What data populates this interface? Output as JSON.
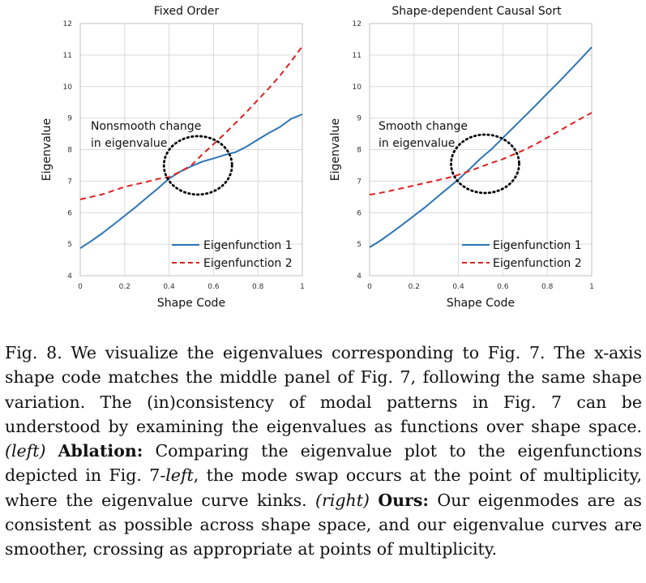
{
  "chart_data": [
    {
      "type": "line",
      "title": "Fixed Order",
      "xlabel": "Shape Code",
      "ylabel": "Eigenvalue",
      "xlim": [
        0,
        1
      ],
      "ylim": [
        4,
        12
      ],
      "x_ticks": [
        "0",
        "0.2",
        "0.4",
        "0.6",
        "0.8",
        "1"
      ],
      "y_ticks": [
        "4",
        "5",
        "6",
        "7",
        "8",
        "9",
        "10",
        "11",
        "12"
      ],
      "legend_position": "bottom-right",
      "annotation": {
        "lines": [
          "Nonsmooth change",
          "in eigenvalue"
        ],
        "circle_center": [
          0.53,
          7.5
        ]
      },
      "series": [
        {
          "name": "Eigenfunction 1",
          "style": "solid",
          "color": "#2e75b6",
          "x": [
            0,
            0.05,
            0.1,
            0.15,
            0.2,
            0.25,
            0.3,
            0.35,
            0.4,
            0.45,
            0.5,
            0.55,
            0.6,
            0.65,
            0.7,
            0.75,
            0.8,
            0.85,
            0.9,
            0.95,
            1.0
          ],
          "y": [
            4.87,
            5.1,
            5.35,
            5.62,
            5.9,
            6.18,
            6.48,
            6.77,
            7.08,
            7.3,
            7.47,
            7.62,
            7.72,
            7.83,
            7.92,
            8.1,
            8.32,
            8.53,
            8.72,
            8.98,
            9.12
          ]
        },
        {
          "name": "Eigenfunction 2",
          "style": "dashed",
          "color": "#e02020",
          "x": [
            0,
            0.05,
            0.1,
            0.15,
            0.2,
            0.25,
            0.3,
            0.35,
            0.4,
            0.45,
            0.5,
            0.55,
            0.6,
            0.65,
            0.7,
            0.75,
            0.8,
            0.85,
            0.9,
            0.95,
            1.0
          ],
          "y": [
            6.42,
            6.5,
            6.58,
            6.7,
            6.82,
            6.9,
            6.98,
            7.07,
            7.13,
            7.3,
            7.5,
            7.85,
            8.17,
            8.5,
            8.85,
            9.2,
            9.58,
            9.95,
            10.35,
            10.8,
            11.28
          ]
        }
      ]
    },
    {
      "type": "line",
      "title": "Shape-dependent Causal Sort",
      "xlabel": "Shape Code",
      "ylabel": "Eigenvalue",
      "xlim": [
        0,
        1
      ],
      "ylim": [
        4,
        12
      ],
      "x_ticks": [
        "0",
        "0.2",
        "0.4",
        "0.6",
        "0.8",
        "1"
      ],
      "y_ticks": [
        "4",
        "5",
        "6",
        "7",
        "8",
        "9",
        "10",
        "11",
        "12"
      ],
      "legend_position": "bottom-right",
      "annotation": {
        "lines": [
          "Smooth change",
          "in eigenvalue"
        ],
        "circle_center": [
          0.52,
          7.55
        ]
      },
      "series": [
        {
          "name": "Eigenfunction 1",
          "style": "solid",
          "color": "#2e75b6",
          "x": [
            0,
            0.05,
            0.1,
            0.15,
            0.2,
            0.25,
            0.3,
            0.35,
            0.4,
            0.45,
            0.5,
            0.55,
            0.6,
            0.65,
            0.7,
            0.75,
            0.8,
            0.85,
            0.9,
            0.95,
            1.0
          ],
          "y": [
            4.9,
            5.12,
            5.37,
            5.63,
            5.9,
            6.17,
            6.47,
            6.76,
            7.05,
            7.38,
            7.72,
            8.02,
            8.37,
            8.72,
            9.07,
            9.42,
            9.78,
            10.13,
            10.5,
            10.87,
            11.25
          ]
        },
        {
          "name": "Eigenfunction 2",
          "style": "dashed",
          "color": "#e02020",
          "x": [
            0,
            0.05,
            0.1,
            0.15,
            0.2,
            0.25,
            0.3,
            0.35,
            0.4,
            0.45,
            0.5,
            0.55,
            0.6,
            0.65,
            0.7,
            0.75,
            0.8,
            0.85,
            0.9,
            0.95,
            1.0
          ],
          "y": [
            6.57,
            6.63,
            6.7,
            6.78,
            6.86,
            6.94,
            7.02,
            7.1,
            7.2,
            7.32,
            7.45,
            7.58,
            7.7,
            7.85,
            8.0,
            8.18,
            8.38,
            8.58,
            8.78,
            8.98,
            9.17
          ]
        }
      ]
    }
  ],
  "caption": {
    "label": "Fig. 8.",
    "text1": "We visualize the eigenvalues corresponding to Fig. 7. The x-axis shape code matches the middle panel of Fig. 7, following the same shape variation. The (in)consistency of modal patterns in Fig. 7 can be understood by examining the eigenvalues as functions over shape space.",
    "left_tag": "(left)",
    "ablation_label": "Ablation:",
    "text2": "Comparing the eigenvalue plot to the eigenfunctions depicted in Fig. 7-",
    "left_word": "left",
    "text3": ", the mode swap occurs at the point of multiplicity, where the eigenvalue curve kinks.",
    "right_tag": "(right)",
    "ours_label": "Ours:",
    "text4": "Our eigenmodes are as consistent as possible across shape space, and our eigenvalue curves are smoother, crossing as appropriate at points of multiplicity."
  }
}
